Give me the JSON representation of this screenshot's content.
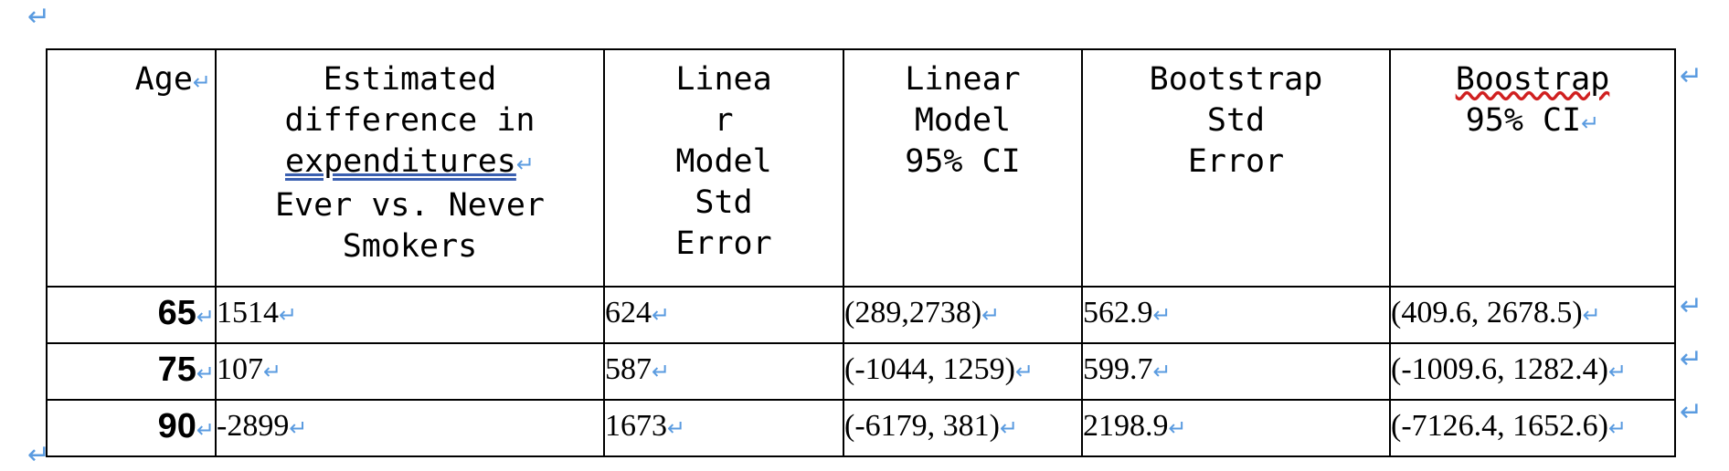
{
  "paragraph_mark": "↵",
  "cell_mark": "↵",
  "table": {
    "headers": {
      "age": "Age",
      "estimated": "Estimated\ndifference in",
      "estimated_underlined": "expenditures",
      "estimated_tail": "Ever vs. Never\nSmokers",
      "lm_se": "Linea\nr\nModel\nStd\nError",
      "lm_ci": "Linear\nModel\n95% CI",
      "bs_se": "Bootstrap\nStd\nError",
      "bs_ci_word": "Boostrap",
      "bs_ci_tail": "95% CI"
    },
    "rows": [
      {
        "age": "65",
        "estimated": "1514",
        "lm_se": "624",
        "lm_ci": "(289,2738)",
        "bs_se": "562.9",
        "bs_ci": "(409.6, 2678.5)"
      },
      {
        "age": "75",
        "estimated": "107",
        "lm_se": "587",
        "lm_ci": "(-1044, 1259)",
        "bs_se": "599.7",
        "bs_ci": "(-1009.6, 1282.4)"
      },
      {
        "age": "90",
        "estimated": "-2899",
        "lm_se": "1673",
        "lm_ci": "(-6179, 381)",
        "bs_se": "2198.9",
        "bs_ci": "(-7126.4, 1652.6)"
      }
    ]
  }
}
